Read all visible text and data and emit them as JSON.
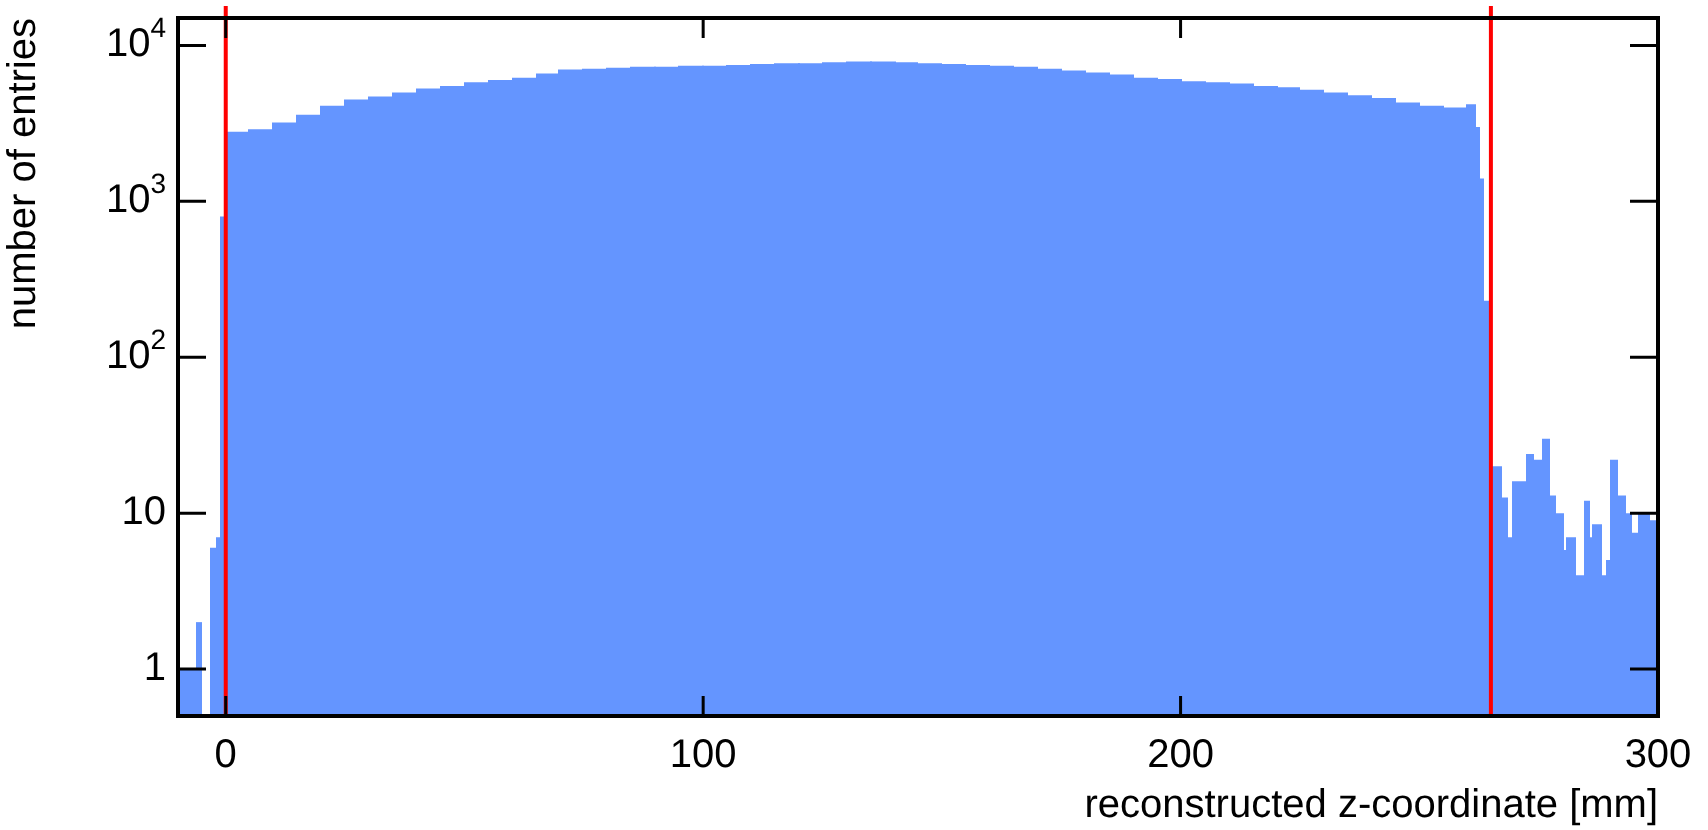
{
  "chart_data": {
    "type": "histogram",
    "xlabel": "reconstructed z-coordinate [mm]",
    "ylabel": "number of entries",
    "color": "#6495ff",
    "log": "y",
    "grid": false,
    "bins": [
      -10,
      -6,
      -5,
      -3,
      -2,
      -1,
      0,
      5,
      10,
      15,
      20,
      25,
      30,
      35,
      40,
      45,
      50,
      55,
      60,
      65,
      70,
      75,
      80,
      85,
      90,
      95,
      100,
      105,
      110,
      115,
      120,
      125,
      130,
      135,
      140,
      145,
      150,
      155,
      160,
      165,
      170,
      175,
      180,
      185,
      190,
      195,
      200,
      205,
      210,
      215,
      220,
      225,
      230,
      235,
      240,
      245,
      250,
      255,
      260,
      261.5,
      262.5,
      263.5,
      265,
      267,
      268.5,
      269.5,
      272.5,
      274,
      276,
      277,
      278.5,
      280,
      281,
      282.5,
      284.5,
      285.5,
      286.5,
      288,
      289.5,
      290,
      291.5,
      293,
      294.5,
      296,
      298,
      300
    ],
    "values": [
      1,
      2,
      null,
      6,
      7,
      800,
      2800,
      2900,
      3200,
      3600,
      4100,
      4500,
      4700,
      5000,
      5300,
      5500,
      5800,
      6000,
      6200,
      6600,
      7000,
      7100,
      7200,
      7300,
      7300,
      7400,
      7400,
      7500,
      7600,
      7700,
      7700,
      7800,
      7900,
      7900,
      7800,
      7700,
      7600,
      7500,
      7400,
      7300,
      7100,
      6900,
      6700,
      6500,
      6200,
      6100,
      5900,
      5800,
      5700,
      5500,
      5400,
      5200,
      5000,
      4800,
      4600,
      4300,
      4100,
      4000,
      4200,
      3000,
      1400,
      230,
      20,
      12.6,
      7,
      16,
      24,
      22,
      30,
      13,
      10,
      5.8,
      7,
      4,
      12,
      7,
      8.5,
      4,
      5,
      22,
      13,
      10,
      7.5,
      10,
      9
    ],
    "xlim": [
      -10,
      300
    ],
    "xticks": [
      0,
      100,
      200,
      300
    ],
    "ylim": [
      0.5,
      15000
    ],
    "yticks": [
      1,
      10,
      {
        "value": 100,
        "label": "10$^{2}$"
      },
      {
        "value": 1000,
        "label": "10$^{3}$"
      },
      {
        "value": 10000,
        "label": "10$^{4}$"
      }
    ],
    "ref_lines": [
      {
        "axis": "x",
        "value": 0,
        "color": "#ff0000"
      },
      {
        "axis": "x",
        "value": 265,
        "color": "#ff0000"
      }
    ]
  }
}
